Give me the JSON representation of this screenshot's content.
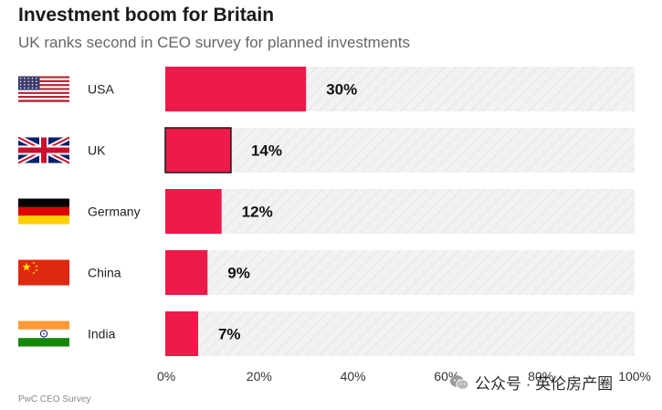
{
  "header": {
    "title": "Investment boom for Britain",
    "subtitle": "UK ranks second in CEO survey for planned investments"
  },
  "footer": {
    "source": "PwC CEO Survey",
    "watermark": "公众号 · 英伦房产圈"
  },
  "colors": {
    "bar": "#ed1a4a",
    "track": "#f2f2f2",
    "hatch": "#dcdcdc"
  },
  "chart_data": {
    "type": "bar",
    "orientation": "horizontal",
    "categories": [
      "USA",
      "UK",
      "Germany",
      "China",
      "India"
    ],
    "values": [
      30,
      14,
      12,
      9,
      7
    ],
    "value_labels": [
      "30%",
      "14%",
      "12%",
      "9%",
      "7%"
    ],
    "flags": [
      "usa-flag-icon",
      "uk-flag-icon",
      "germany-flag-icon",
      "china-flag-icon",
      "india-flag-icon"
    ],
    "xlim": [
      0,
      100
    ],
    "xticks": [
      0,
      20,
      40,
      60,
      80,
      100
    ],
    "xtick_labels": [
      "0%",
      "20%",
      "40%",
      "60%",
      "80%",
      "100%"
    ],
    "highlighted": "UK",
    "grid": false,
    "legend": "none"
  }
}
